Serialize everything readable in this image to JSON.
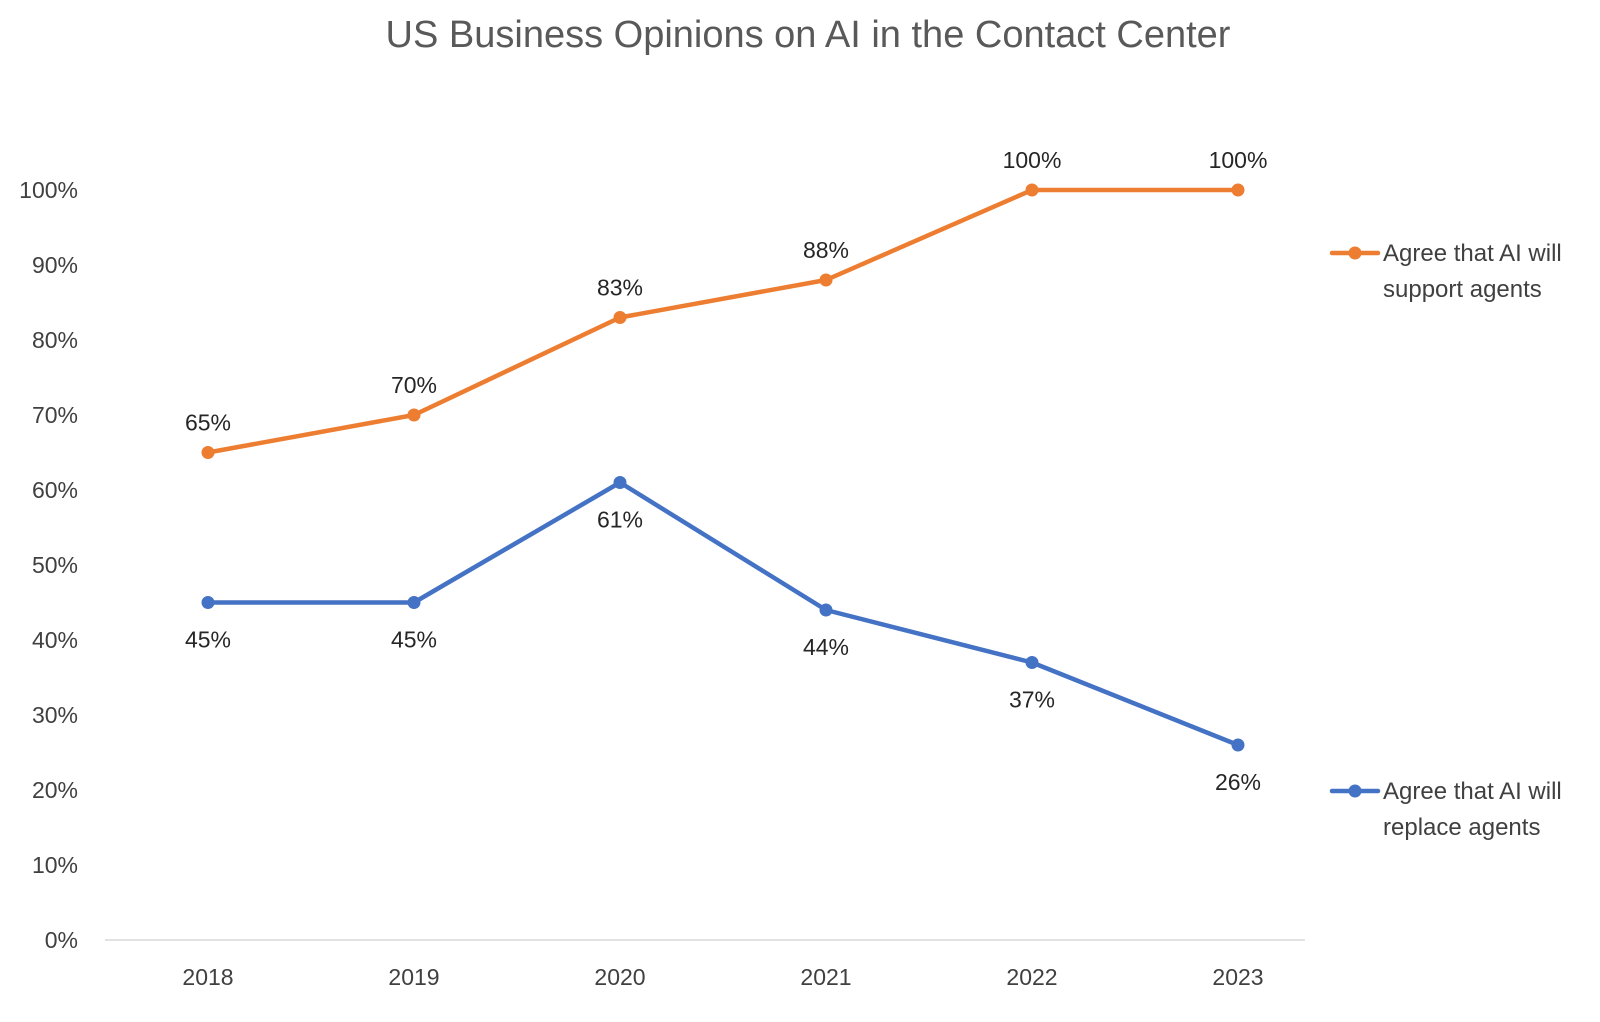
{
  "chart_data": {
    "type": "line",
    "title": "US Business Opinions on AI in the Contact Center",
    "xlabel": "",
    "ylabel": "",
    "categories": [
      "2018",
      "2019",
      "2020",
      "2021",
      "2022",
      "2023"
    ],
    "ylim": [
      0,
      100
    ],
    "y_ticks": [
      0,
      10,
      20,
      30,
      40,
      50,
      60,
      70,
      80,
      90,
      100
    ],
    "y_tick_labels": [
      "0%",
      "10%",
      "20%",
      "30%",
      "40%",
      "50%",
      "60%",
      "70%",
      "80%",
      "90%",
      "100%"
    ],
    "grid": false,
    "legend_position": "right",
    "series": [
      {
        "name": "Agree that AI will support agents",
        "legend_lines": [
          "Agree that AI will",
          "support agents"
        ],
        "color": "#ED7D31",
        "values": [
          65,
          70,
          83,
          88,
          100,
          100
        ],
        "labels": [
          "65%",
          "70%",
          "83%",
          "88%",
          "100%",
          "100%"
        ],
        "label_position": "above"
      },
      {
        "name": "Agree that AI will replace agents",
        "legend_lines": [
          "Agree that AI will",
          "replace agents"
        ],
        "color": "#4472C4",
        "values": [
          45,
          45,
          61,
          44,
          37,
          26
        ],
        "labels": [
          "45%",
          "45%",
          "61%",
          "44%",
          "37%",
          "26%"
        ],
        "label_position": "below"
      }
    ]
  }
}
